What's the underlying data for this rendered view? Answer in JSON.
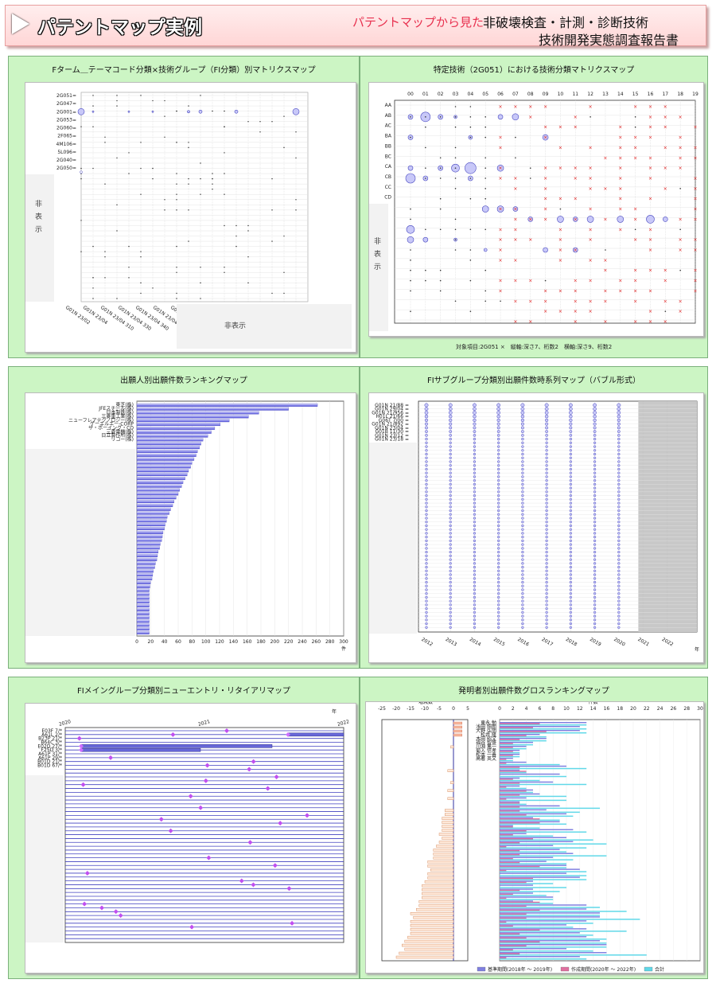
{
  "header": {
    "title": "パテントマップ実例",
    "subtitle": "パテントマップから見た",
    "main": "非破壊検査・計測・診断技術",
    "report": "技術開発実態調査報告書"
  },
  "p1": {
    "title": "Fターム＿テーマコード分類×技術グループ（FI分類）別マトリクスマップ",
    "row_labels": [
      "2G051",
      "2G047",
      "2G001",
      "2G053",
      "2G060",
      "2F065",
      "4M106",
      "5L096",
      "2G040",
      "2G050"
    ],
    "col_labels": [
      "G01N 23/02",
      "G01N 23/04",
      "G01N 23/04 310",
      "G01N 23/04 330",
      "G01N 23/04 340",
      "G01N 23/041",
      "G01N 23/046"
    ],
    "hidden_left": "非表示",
    "hidden_bottom": "非表示"
  },
  "p2": {
    "title": "特定技術（2G051）における技術分類マトリクスマップ",
    "col_labels": [
      "00",
      "01",
      "02",
      "03",
      "04",
      "05",
      "06",
      "07",
      "08",
      "09",
      "10",
      "11",
      "12",
      "13",
      "14",
      "15",
      "16",
      "17",
      "18",
      "19"
    ],
    "row_labels": [
      "AA",
      "AB",
      "AC",
      "BA",
      "BB",
      "BC",
      "CA",
      "CB",
      "CC",
      "CD"
    ],
    "hidden": "非表示",
    "footnote": "対象項目:2G051 ×　縦軸:深さ7、桁数2　横軸:深さ9、桁数2"
  },
  "p3": {
    "title": "出願人別出願件数ランキングマップ",
    "axis_unit": "件"
  },
  "p4": {
    "title": "FIサブグループ分類別出願件数時系列マップ（バブル形式）",
    "axis_unit": "年"
  },
  "p5": {
    "title": "FIメイングループ分類別ニューエントリ・リタイアリマップ",
    "axis_unit": "年"
  },
  "p6": {
    "title": "発明者別出願件数グロスランキングマップ",
    "left_axis_title": "増減数",
    "right_axis_title": "件数",
    "legend": [
      "基準期間(2018年 ～ 2019年)",
      "作成期間(2020年 ～ 2022年)",
      "合計"
    ]
  },
  "chart_data": [
    {
      "type": "bar",
      "title": "出願人別出願件数ランキングマップ",
      "categories": [
        "東芝(株)",
        "JFEスチール(株)",
        "日本製鉄(株)",
        "三菱重工業(株)",
        "ニューフレアテクノロジー(株)",
        "ゲーエルエー-CORP",
        "ザ・ボーイング・CO",
        "三菱電機(株)",
        "日立製作所(株)",
        "リコー(株)"
      ],
      "values": [
        262,
        220,
        177,
        162,
        134,
        121,
        113,
        108,
        103,
        96
      ],
      "xlabel": "件",
      "xlim": [
        0,
        300
      ],
      "xticks": [
        0,
        20,
        40,
        60,
        80,
        100,
        120,
        140,
        160,
        180,
        200,
        220,
        240,
        260,
        280,
        300
      ]
    },
    {
      "type": "scatter",
      "title": "FIサブグループ分類別出願件数時系列マップ（バブル形式）",
      "categories": [
        "G01N 21/88",
        "G01N 29/04",
        "G01N 21/956",
        "H01L 21/66",
        "G06T 7/00",
        "G01N 21/892",
        "G01N 23/04",
        "G01B 11/30",
        "G01N 23/12",
        "G01N 23/18"
      ],
      "x": [
        "2012",
        "2013",
        "2014",
        "2015",
        "2016",
        "2017",
        "2018",
        "2019",
        "2020",
        "2021",
        "2022"
      ],
      "xlabel": "年"
    },
    {
      "type": "scatter",
      "title": "FIメイングループ分類別ニューエントリ・リタイアリマップ",
      "categories": [
        "E03F 7/",
        "A61L 2/",
        "B23P 21/",
        "B64C 3/",
        "E02D 27/",
        "F25D 3/",
        "A61P 31/",
        "A61P 29/",
        "B01D 21/",
        "B01D 67/"
      ],
      "x": [
        "2020",
        "2021",
        "2022"
      ],
      "xlabel": "年"
    },
    {
      "type": "bar",
      "title": "発明者別出願件数グロスランキングマップ",
      "categories": [
        "東永 勉",
        "浅田 照朗",
        "大野 弘明",
        "松井 隆",
        "木田 昭文",
        "福谷 智盛",
        "川淵 篤一",
        "菊入 信孝",
        "松本 一善",
        "高著 英文"
      ],
      "left_axis": {
        "label": "増減数",
        "ticks": [
          -25,
          -20,
          -15,
          -10,
          -5,
          0,
          5
        ]
      },
      "right_axis": {
        "label": "件数",
        "ticks": [
          0,
          2,
          4,
          6,
          8,
          10,
          12,
          14,
          16,
          18,
          20,
          22,
          24,
          26,
          28,
          30
        ]
      },
      "series": [
        {
          "name": "基準期間(2018年 ～ 2019年)",
          "values": [
            13,
            12,
            12,
            6,
            7,
            5,
            4,
            3,
            3,
            2
          ]
        },
        {
          "name": "作成期間(2020年 ～ 2022年)",
          "values": [
            6,
            5,
            7,
            4,
            3,
            2,
            2,
            2,
            2,
            1
          ]
        },
        {
          "name": "合計",
          "values": [
            13,
            13,
            13,
            7,
            7,
            5,
            4,
            3,
            3,
            2
          ]
        }
      ]
    }
  ]
}
